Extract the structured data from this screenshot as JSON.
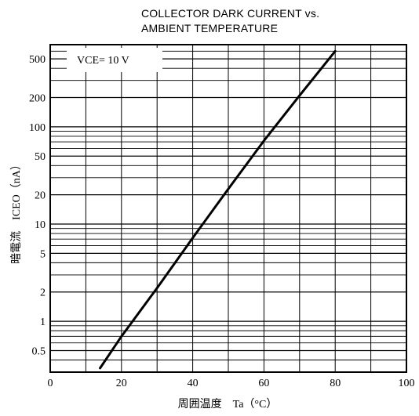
{
  "chart_data": {
    "type": "line",
    "title_lines": [
      "COLLECTOR DARK CURRENT vs.",
      "AMBIENT TEMPERATURE"
    ],
    "xlabel": "周囲温度　Ta（°C）",
    "ylabel": "暗電流　ICEO（nA）",
    "annotation": "VCE= 10  V",
    "xlim": [
      0,
      100
    ],
    "ylim": [
      0.3,
      700
    ],
    "yscale": "log",
    "grid": true,
    "xticks": [
      0,
      20,
      40,
      60,
      80,
      100
    ],
    "xtick_labels": [
      "0",
      "20",
      "40",
      "60",
      "80",
      "100"
    ],
    "yticks": [
      0.5,
      1,
      2,
      5,
      10,
      20,
      50,
      100,
      200,
      500
    ],
    "ytick_labels": [
      "0.5",
      "1",
      "2",
      "5",
      "10",
      "20",
      "50",
      "100",
      "200",
      "500"
    ],
    "series": [
      {
        "x": [
          14,
          20,
          30,
          40,
          50,
          60,
          70,
          80
        ],
        "y": [
          0.33,
          0.7,
          2.2,
          7.2,
          23,
          72,
          210,
          600
        ]
      }
    ],
    "colors": {
      "line": "#000000",
      "grid": "#000000",
      "frame": "#000000"
    }
  }
}
